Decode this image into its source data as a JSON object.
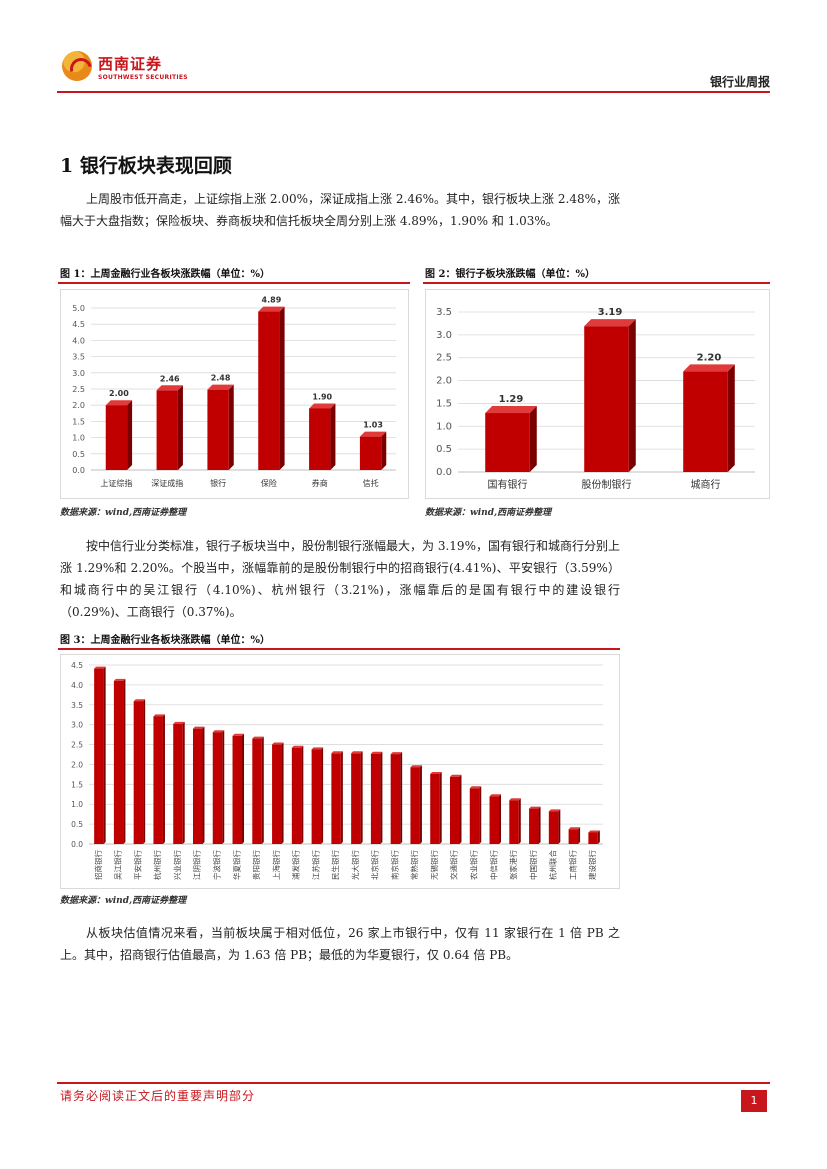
{
  "header": {
    "logo_cn": "西南证券",
    "logo_en": "SOUTHWEST SECURITIES",
    "report_title": "银行业周报"
  },
  "section": {
    "heading": "1 银行板块表现回顾",
    "para1": "上周股市低开高走，上证综指上涨 2.00%，深证成指上涨 2.46%。其中，银行板块上涨 2.48%，涨幅大于大盘指数；保险板块、券商板块和信托板块全周分别上涨 4.89%，1.90% 和 1.03%。",
    "para2": "按中信行业分类标准，银行子板块当中，股份制银行涨幅最大，为 3.19%，国有银行和城商行分别上涨 1.29%和 2.20%。个股当中，涨幅靠前的是股份制银行中的招商银行(4.41%)、平安银行（3.59%）和城商行中的吴江银行（4.10%)、杭州银行（3.21%)，涨幅靠后的是国有银行中的建设银行（0.29%)、工商银行（0.37%)。",
    "para3": "从板块估值情况来看，当前板块属于相对低位，26 家上市银行中，仅有 11 家银行在 1 倍 PB 之上。其中，招商银行估值最高，为 1.63 倍 PB；最低的为华夏银行，仅 0.64 倍 PB。"
  },
  "figures": {
    "fig1_title": "图 1：上周金融行业各板块涨跌幅（单位：%）",
    "fig2_title": "图 2：银行子板块涨跌幅（单位：%）",
    "fig3_title": "图 3：上周金融行业各板块涨跌幅（单位：%）",
    "source1": "数据来源：wind,西南证券整理",
    "source2": "数据来源：wind,西南证券整理",
    "source3": "数据来源：wind,西南证券整理"
  },
  "footer": {
    "disclaimer": "请务必阅读正文后的重要声明部分",
    "page": "1"
  },
  "colors": {
    "accent": "#c8161d",
    "bar": "#c00000"
  },
  "chart_data": [
    {
      "id": "fig1",
      "type": "bar",
      "categories": [
        "上证综指",
        "深证成指",
        "银行",
        "保险",
        "券商",
        "信托"
      ],
      "values": [
        2.0,
        2.46,
        2.48,
        4.89,
        1.9,
        1.03
      ],
      "data_labels": [
        "2.00",
        "2.46",
        "2.48",
        "4.89",
        "1.90",
        "1.03"
      ],
      "ylim": [
        0,
        5
      ],
      "yticks": [
        "0.0",
        "0.5",
        "1.0",
        "1.5",
        "2.0",
        "2.5",
        "3.0",
        "3.5",
        "4.0",
        "4.5",
        "5.0"
      ],
      "grid": true
    },
    {
      "id": "fig2",
      "type": "bar",
      "categories": [
        "国有银行",
        "股份制银行",
        "城商行"
      ],
      "values": [
        1.29,
        3.19,
        2.2
      ],
      "data_labels": [
        "1.29",
        "3.19",
        "2.20"
      ],
      "ylim": [
        0,
        3.5
      ],
      "yticks": [
        "0.0",
        "0.5",
        "1.0",
        "1.5",
        "2.0",
        "2.5",
        "3.0",
        "3.5"
      ],
      "grid": true
    },
    {
      "id": "fig3",
      "type": "bar",
      "categories": [
        "招商银行",
        "吴江银行",
        "平安银行",
        "杭州银行",
        "兴业银行",
        "江阴银行",
        "宁波银行",
        "华夏银行",
        "贵阳银行",
        "上海银行",
        "浦发银行",
        "江苏银行",
        "民生银行",
        "光大银行",
        "北京银行",
        "南京银行",
        "常熟银行",
        "无锡银行",
        "交通银行",
        "农业银行",
        "中信银行",
        "张家港行",
        "中国银行",
        "杭州联合",
        "工商银行",
        "建设银行"
      ],
      "values": [
        4.41,
        4.1,
        3.59,
        3.21,
        3.02,
        2.9,
        2.81,
        2.72,
        2.65,
        2.5,
        2.42,
        2.38,
        2.28,
        2.28,
        2.27,
        2.26,
        1.93,
        1.76,
        1.69,
        1.4,
        1.2,
        1.1,
        0.89,
        0.82,
        0.37,
        0.29
      ],
      "ylim": [
        0,
        4.5
      ],
      "yticks": [
        "0.0",
        "0.5",
        "1.0",
        "1.5",
        "2.0",
        "2.5",
        "3.0",
        "3.5",
        "4.0",
        "4.5"
      ],
      "grid": true
    }
  ]
}
